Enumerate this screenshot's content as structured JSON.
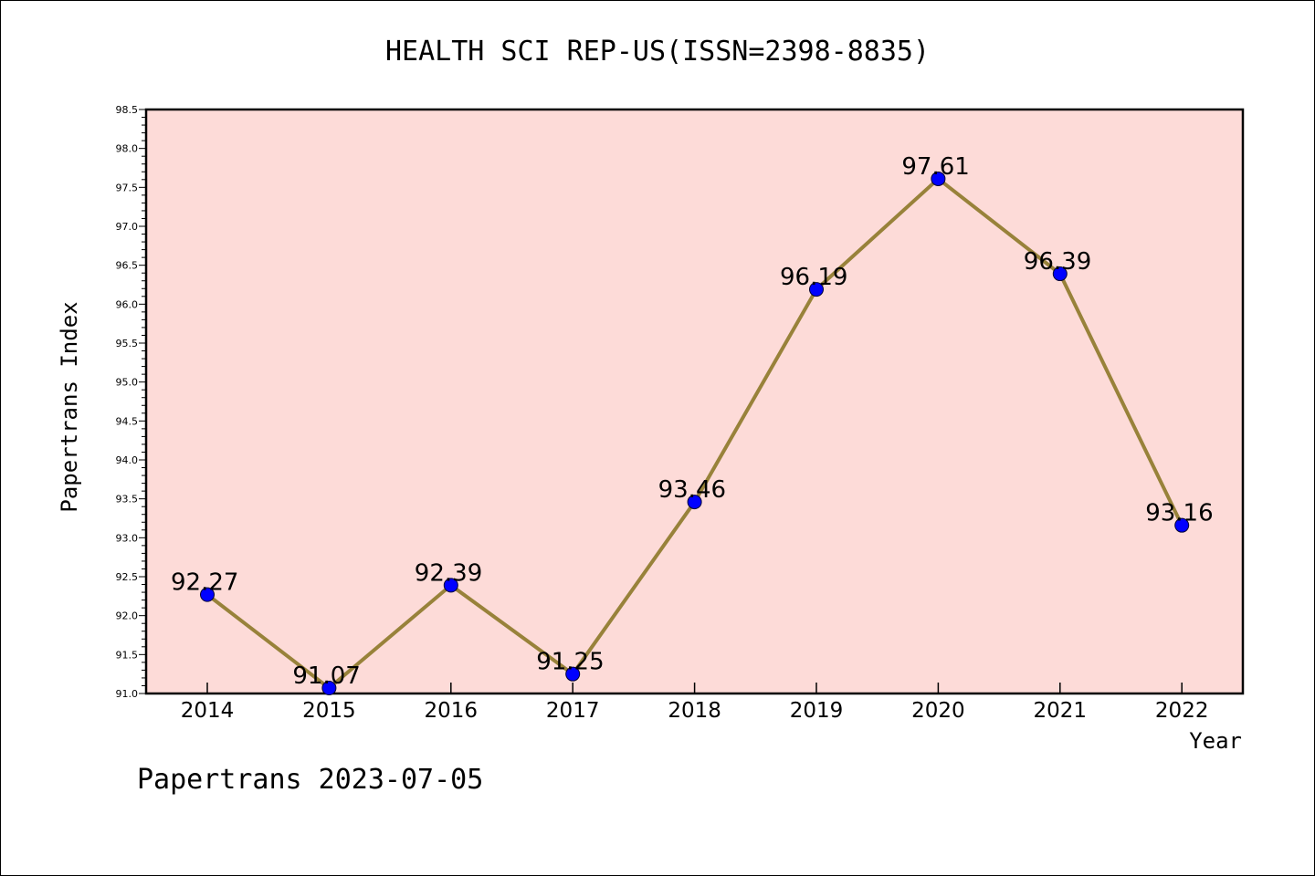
{
  "chart_data": {
    "type": "line",
    "title": "HEALTH SCI REP-US(ISSN=2398-8835)",
    "xlabel": "Year",
    "ylabel": "Papertrans Index",
    "categories": [
      "2014",
      "2015",
      "2016",
      "2017",
      "2018",
      "2019",
      "2020",
      "2021",
      "2022"
    ],
    "series": [
      {
        "values": [
          92.27,
          91.07,
          92.39,
          91.25,
          93.46,
          96.19,
          97.61,
          96.39,
          93.16
        ],
        "labels": [
          "92.27",
          "91.07",
          "92.39",
          "91.25",
          "93.46",
          "96.19",
          "97.61",
          "96.39",
          "93.16"
        ]
      }
    ],
    "ylim": [
      91.0,
      98.5
    ],
    "yticks": [
      "91.0",
      "91.5",
      "92.0",
      "92.5",
      "93.0",
      "93.5",
      "94.0",
      "94.5",
      "95.0",
      "95.5",
      "96.0",
      "96.5",
      "97.0",
      "97.5",
      "98.0",
      "98.5"
    ],
    "grid": false,
    "legend": "none",
    "colors": {
      "plot_background": "#fddbd8",
      "line": "#98823a",
      "marker": "#0000ff",
      "axis": "#000000"
    }
  },
  "footer": "Papertrans 2023-07-05"
}
